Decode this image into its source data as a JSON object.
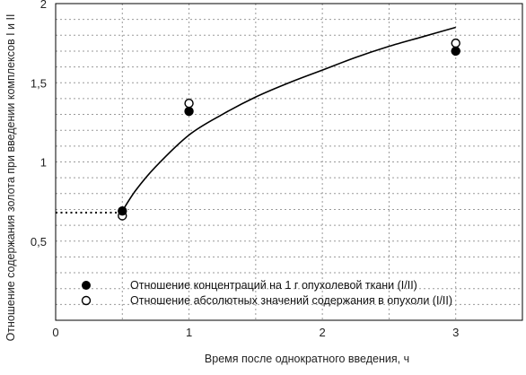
{
  "chart_data": {
    "type": "scatter",
    "xlabel": "Время после однократного введения, ч",
    "ylabel": "Отношение содержания золота при введении комплексов I и II",
    "xlim": [
      0,
      3.5
    ],
    "ylim": [
      0,
      2
    ],
    "x_ticks": [
      {
        "value": 0,
        "label": "0"
      },
      {
        "value": 1,
        "label": "1"
      },
      {
        "value": 2,
        "label": "2"
      },
      {
        "value": 3,
        "label": "3"
      }
    ],
    "y_ticks": [
      {
        "value": 0.5,
        "label": "0,5"
      },
      {
        "value": 1,
        "label": "1"
      },
      {
        "value": 1.5,
        "label": "1,5"
      },
      {
        "value": 2,
        "label": "2"
      }
    ],
    "grid": true,
    "legend_position": "bottom",
    "series": [
      {
        "name": "Отношение концентраций на 1 г опухолевой ткани (I/II)",
        "marker": "filled-circle",
        "color": "#000000",
        "points": [
          {
            "x": 0.5,
            "y": 0.69
          },
          {
            "x": 1,
            "y": 1.32
          },
          {
            "x": 3,
            "y": 1.7
          }
        ]
      },
      {
        "name": "Отношение абсолютных значений содержания в опухоли  (I/II)",
        "marker": "open-circle",
        "color": "#000000",
        "points": [
          {
            "x": 0.5,
            "y": 0.66
          },
          {
            "x": 1,
            "y": 1.37
          },
          {
            "x": 3,
            "y": 1.75
          }
        ]
      }
    ],
    "trend_curve": {
      "type": "logarithmic",
      "x": [
        0.5,
        0.6,
        0.75,
        1.0,
        1.25,
        1.5,
        1.75,
        2.0,
        2.25,
        2.5,
        2.75,
        3.0
      ],
      "y": [
        0.69,
        0.82,
        0.97,
        1.17,
        1.3,
        1.41,
        1.5,
        1.58,
        1.66,
        1.73,
        1.79,
        1.85
      ]
    },
    "reference_line": {
      "x": [
        0,
        0.5
      ],
      "y": [
        0.68,
        0.68
      ],
      "style": "dotted"
    }
  }
}
